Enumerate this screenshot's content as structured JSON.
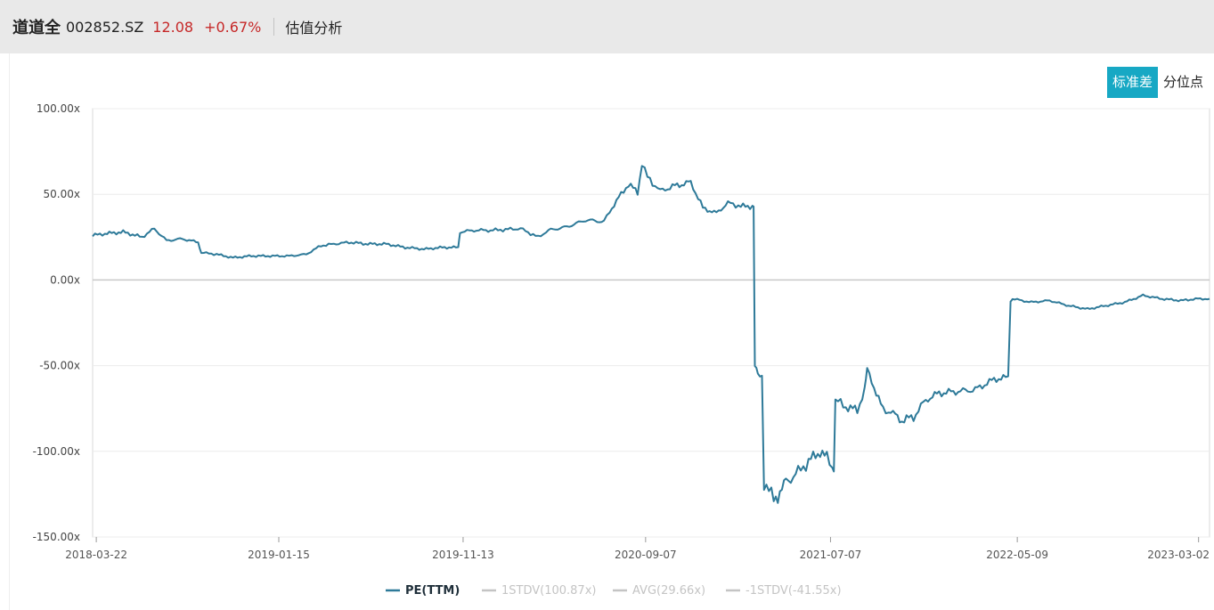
{
  "header": {
    "name": "道道全",
    "code": "002852.SZ",
    "price": "12.08",
    "change": "+0.67%",
    "section": "估值分析"
  },
  "toggle": {
    "std_label": "标准差",
    "pct_label": "分位点"
  },
  "colors": {
    "line": "#2e7a99",
    "active_button": "#17a8c4",
    "price": "#c62828",
    "legend_inactive": "#c4c4c4"
  },
  "chart_data": {
    "type": "line",
    "ylim": [
      -150,
      100
    ],
    "yticks": [
      100,
      50,
      0,
      -50,
      -100,
      -150
    ],
    "ytick_labels": [
      "100.00x",
      "50.00x",
      "0.00x",
      "-50.00x",
      "-100.00x",
      "-150.00x"
    ],
    "xticks": [
      "2018-03-22",
      "2019-01-15",
      "2019-11-13",
      "2020-09-07",
      "2021-07-07",
      "2022-05-09",
      "2023-03-02"
    ],
    "grid": true,
    "legend_position": "bottom-center",
    "legend": [
      {
        "label": "PE(TTM)",
        "active": true
      },
      {
        "label": "1STDV(100.87x)",
        "active": false
      },
      {
        "label": "AVG(29.66x)",
        "active": false
      },
      {
        "label": "-1STDV(-41.55x)",
        "active": false
      }
    ],
    "series": [
      {
        "name": "PE(TTM)",
        "x": [
          "2018-03-16",
          "2018-04-05",
          "2018-05-05",
          "2018-06-05",
          "2018-06-25",
          "2018-07-15",
          "2018-08-10",
          "2018-09-05",
          "2018-09-10",
          "2018-10-05",
          "2018-11-01",
          "2018-12-01",
          "2019-01-01",
          "2019-02-01",
          "2019-03-01",
          "2019-03-25",
          "2019-04-15",
          "2019-05-10",
          "2019-06-10",
          "2019-07-10",
          "2019-08-10",
          "2019-09-10",
          "2019-10-10",
          "2019-11-05",
          "2019-11-08",
          "2019-12-01",
          "2020-01-01",
          "2020-02-15",
          "2020-03-15",
          "2020-04-01",
          "2020-05-01",
          "2020-06-01",
          "2020-07-01",
          "2020-07-10",
          "2020-07-25",
          "2020-08-10",
          "2020-08-25",
          "2020-09-01",
          "2020-09-10",
          "2020-10-01",
          "2020-10-25",
          "2020-11-20",
          "2020-12-10",
          "2021-01-01",
          "2021-01-20",
          "2021-02-10",
          "2021-03-01",
          "2021-03-05",
          "2021-03-10",
          "2021-03-20",
          "2021-04-05",
          "2021-04-15",
          "2021-04-25",
          "2021-05-15",
          "2021-06-01",
          "2021-06-20",
          "2021-07-01",
          "2021-07-10",
          "2021-07-15",
          "2021-08-01",
          "2021-08-20",
          "2021-09-01",
          "2021-09-05",
          "2021-09-20",
          "2021-10-01",
          "2021-10-10",
          "2021-11-01",
          "2021-11-20",
          "2021-12-10",
          "2022-01-01",
          "2022-02-01",
          "2022-03-01",
          "2022-04-01",
          "2022-04-20",
          "2022-04-28",
          "2022-05-01",
          "2022-06-01",
          "2022-07-01",
          "2022-08-01",
          "2022-09-01",
          "2022-10-01",
          "2022-11-01",
          "2022-12-01",
          "2023-01-01",
          "2023-02-01",
          "2023-03-01",
          "2023-03-20"
        ],
        "values": [
          26,
          27,
          28,
          25,
          30,
          23,
          24,
          22,
          16,
          15,
          13,
          14,
          14,
          14,
          15,
          20,
          21,
          22,
          21,
          21,
          19,
          18,
          19,
          19,
          28,
          29,
          29,
          30,
          25,
          29,
          31,
          35,
          34,
          40,
          48,
          56,
          51,
          68,
          60,
          52,
          55,
          57,
          42,
          39,
          45,
          43,
          43,
          -50,
          -56,
          -118,
          -128,
          -124,
          -118,
          -112,
          -106,
          -100,
          -104,
          -108,
          -70,
          -74,
          -76,
          -64,
          -52,
          -66,
          -76,
          -76,
          -82,
          -80,
          -70,
          -66,
          -65,
          -64,
          -58,
          -57,
          -12,
          -11,
          -13,
          -12,
          -15,
          -17,
          -15,
          -13,
          -9,
          -11,
          -12,
          -11,
          -11
        ]
      }
    ]
  }
}
